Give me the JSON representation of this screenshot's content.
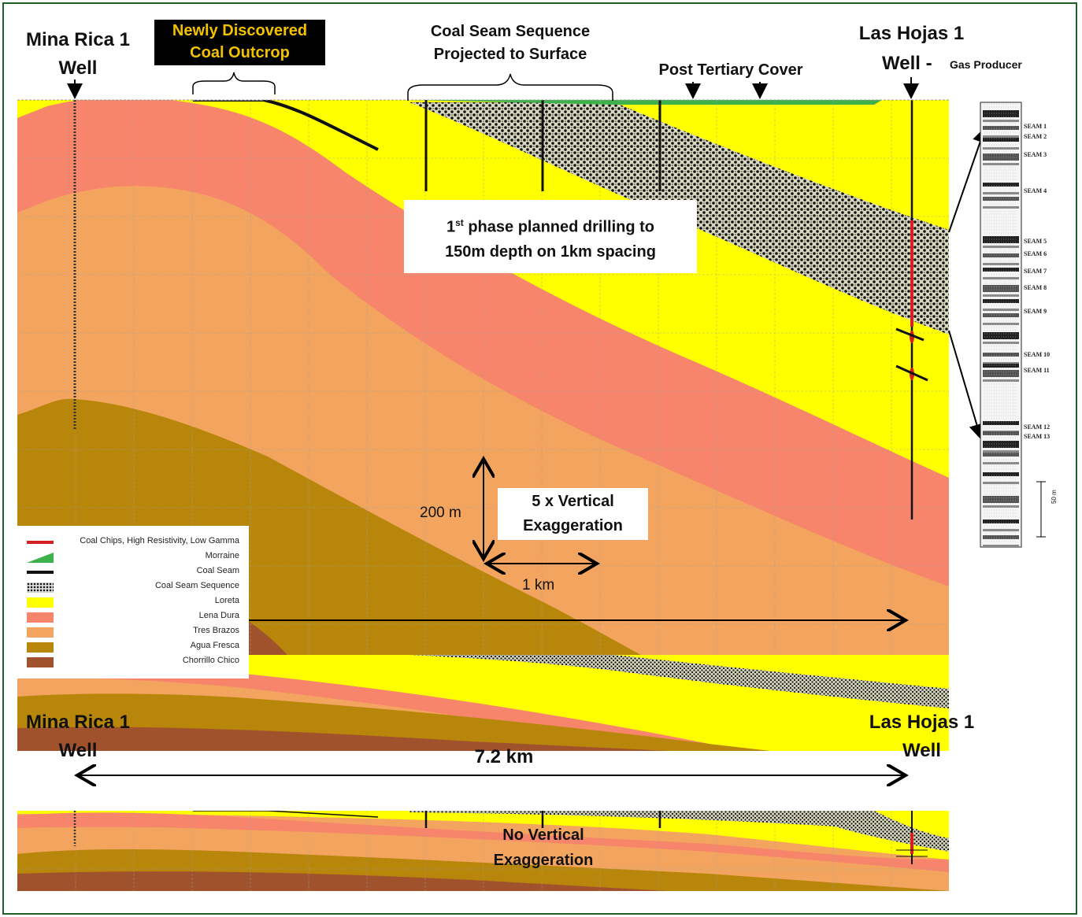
{
  "labels": {
    "mina_rica_top_1": "Mina Rica 1",
    "mina_rica_top_2": "Well",
    "las_hojas_top_1": "Las Hojas 1",
    "las_hojas_top_2": "Well -",
    "gas_producer": "Gas Producer",
    "newly_discovered_1": "Newly Discovered",
    "newly_discovered_2": "Coal Outcrop",
    "coal_seam_seq_1": "Coal Seam Sequence",
    "coal_seam_seq_2": "Projected to Surface",
    "post_tertiary": "Post Tertiary Cover",
    "phase_1a": "1",
    "phase_1sup": "st",
    "phase_1b": "phase planned drilling to",
    "phase_2": "150m depth on 1km spacing",
    "vert_exag_1": "5 x Vertical",
    "vert_exag_2": "Exaggeration",
    "scale_200m": "200 m",
    "scale_1km": "1 km",
    "mina_rica_bot_1": "Mina Rica 1",
    "mina_rica_bot_2": "Well",
    "las_hojas_bot_1": "Las Hojas 1",
    "las_hojas_bot_2": "Well",
    "distance": "7.2 km",
    "no_vert_1": "No Vertical",
    "no_vert_2": "Exaggeration",
    "log_scale": "50 m"
  },
  "legend": [
    {
      "label": "Coal Chips, High Resistivity, Low Gamma",
      "color": "#d42020"
    },
    {
      "label": "Morraine",
      "color": "#3db24a"
    },
    {
      "label": "Coal Seam",
      "color": "#111111"
    },
    {
      "label": "Coal Seam Sequence",
      "color": "#555555"
    },
    {
      "label": "Loreta",
      "color": "#ffff00"
    },
    {
      "label": "Lena Dura",
      "color": "#f7856b"
    },
    {
      "label": "Tres Brazos",
      "color": "#f3a45e"
    },
    {
      "label": "Agua Fresca",
      "color": "#b8860b"
    },
    {
      "label": "Chorrillo Chico",
      "color": "#a0522d"
    }
  ],
  "seams": [
    "SEAM 1",
    "SEAM 2",
    "SEAM 3",
    "SEAM 4",
    "SEAM 5",
    "SEAM 6",
    "SEAM 7",
    "SEAM 8",
    "SEAM 9",
    "SEAM 10",
    "SEAM 11",
    "SEAM 12",
    "SEAM 13"
  ],
  "colors": {
    "loreta": "#ffff00",
    "lena_dura": "#f7856b",
    "tres_brazos": "#f3a45e",
    "agua_fresca": "#b8860b",
    "chorrillo_chico": "#a0522d",
    "morraine": "#3db24a",
    "frame": "#1f5f23"
  }
}
